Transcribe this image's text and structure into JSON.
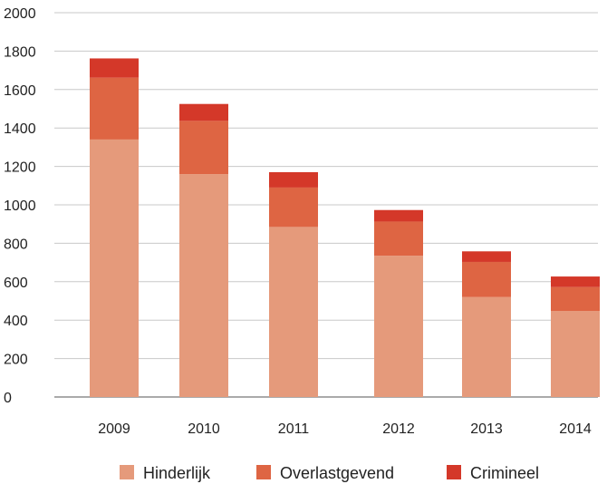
{
  "chart_data": {
    "type": "bar",
    "stacked": true,
    "categories": [
      "2009",
      "2010",
      "2011",
      "2012",
      "2013",
      "2014"
    ],
    "series": [
      {
        "name": "Hinderlijk",
        "color": "#e59a7b",
        "values": [
          1340,
          1160,
          885,
          735,
          520,
          448
        ]
      },
      {
        "name": "Overlastgevend",
        "color": "#de6543",
        "values": [
          322,
          277,
          205,
          178,
          183,
          124
        ]
      },
      {
        "name": "Crimineel",
        "color": "#d43829",
        "values": [
          100,
          88,
          80,
          60,
          55,
          55
        ]
      }
    ],
    "ylim": [
      0,
      2000
    ],
    "yticks": [
      "0",
      "200",
      "400",
      "600",
      "800",
      "1000",
      "1200",
      "1400",
      "1600",
      "1800",
      "2000"
    ],
    "grid": true,
    "legend_position": "bottom"
  }
}
